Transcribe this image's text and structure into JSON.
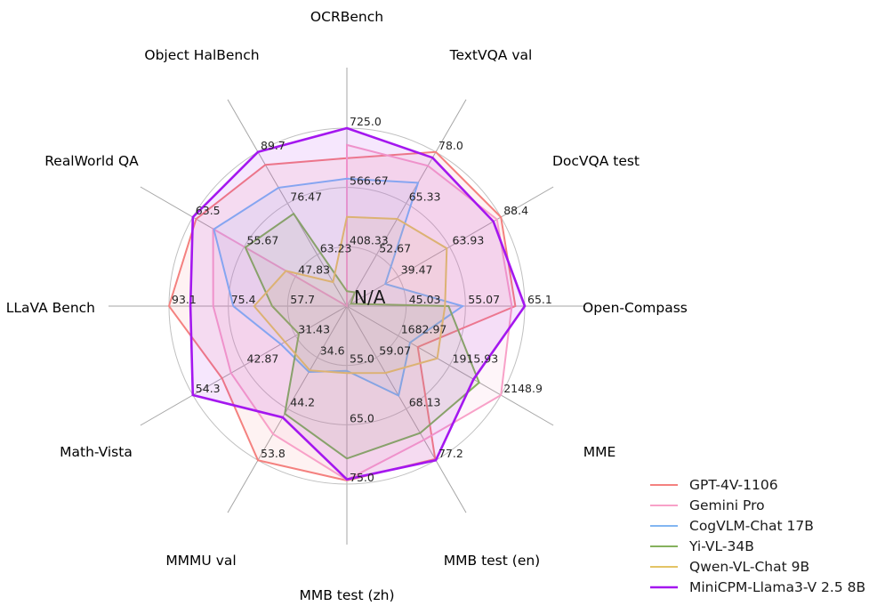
{
  "figure": {
    "background": "#ffffff",
    "grid_color": "#c0c0c0",
    "spoke_color": "#a6a6a6",
    "tick_color": "#262626"
  },
  "chart_data": {
    "type": "radar",
    "title": "",
    "rings": 3,
    "fill_opacity": 0.1,
    "legend_position": "lower right",
    "center_label": "N/A",
    "axes": [
      {
        "label": "OCRBench",
        "center": 250,
        "max": 725.0,
        "ticks": [
          "408.33",
          "566.67",
          "725.0"
        ]
      },
      {
        "label": "TextVQA val",
        "center": 40,
        "max": 78.0,
        "ticks": [
          "52.67",
          "65.33",
          "78.0"
        ]
      },
      {
        "label": "DocVQA test",
        "center": 15,
        "max": 88.4,
        "ticks": [
          "39.47",
          "63.93",
          "88.4"
        ]
      },
      {
        "label": "Open-Compass",
        "center": 35,
        "max": 65.1,
        "ticks": [
          "45.03",
          "55.07",
          "65.1"
        ]
      },
      {
        "label": "MME",
        "center": 1450,
        "max": 2148.9,
        "ticks": [
          "1682.97",
          "1915.93",
          "2148.9"
        ]
      },
      {
        "label": "MMB test (en)",
        "center": 50,
        "max": 77.2,
        "ticks": [
          "59.07",
          "68.13",
          "77.2"
        ]
      },
      {
        "label": "MMB test (zh)",
        "center": 45,
        "max": 75.0,
        "ticks": [
          "55.0",
          "65.0",
          "75.0"
        ]
      },
      {
        "label": "MMMU val",
        "center": 25,
        "max": 53.8,
        "ticks": [
          "34.6",
          "44.2",
          "53.8"
        ]
      },
      {
        "label": "Math-Vista",
        "center": 20,
        "max": 54.3,
        "ticks": [
          "31.43",
          "42.87",
          "54.3"
        ]
      },
      {
        "label": "LLaVA Bench",
        "center": 40,
        "max": 93.1,
        "ticks": [
          "57.7",
          "75.4",
          "93.1"
        ]
      },
      {
        "label": "RealWorld QA",
        "center": 40,
        "max": 63.5,
        "ticks": [
          "47.83",
          "55.67",
          "63.5"
        ]
      },
      {
        "label": "Object HalBench",
        "center": 50,
        "max": 89.7,
        "ticks": [
          "63.23",
          "76.47",
          "89.7"
        ]
      }
    ],
    "series": [
      {
        "name": "GPT-4V-1106",
        "color": "#f4817f",
        "line_width": 2,
        "values": [
          645,
          78.0,
          88.4,
          63.5,
          1771.5,
          77.0,
          74.4,
          53.8,
          47.8,
          93.1,
          63.0,
          86.4
        ]
      },
      {
        "name": "Gemini Pro",
        "color": "#f8a1c8",
        "line_width": 2,
        "values": [
          680,
          74.6,
          86.5,
          62.9,
          2148.9,
          73.6,
          74.3,
          48.9,
          45.8,
          79.9,
          60.4,
          null
        ]
      },
      {
        "name": "CogVLM-Chat 17B",
        "color": "#82b6f2",
        "line_width": 2,
        "values": [
          590,
          70.4,
          33.3,
          54.6,
          1736.6,
          65.8,
          55.9,
          37.3,
          34.7,
          73.9,
          60.3,
          80.5
        ]
      },
      {
        "name": "Yi-VL-34B",
        "color": "#85b15d",
        "line_width": 2,
        "values": [
          290,
          43.4,
          16.9,
          52.2,
          2050.2,
          72.4,
          70.7,
          45.1,
          30.7,
          62.3,
          55.5,
          73.8
        ]
      },
      {
        "name": "Qwen-VL-Chat 9B",
        "color": "#e3c466",
        "line_width": 2,
        "values": [
          488,
          61.5,
          62.6,
          51.6,
          1860.0,
          61.8,
          56.3,
          37.0,
          33.8,
          67.7,
          49.3,
          56.2
        ]
      },
      {
        "name": "MiniCPM-Llama3-V 2.5 8B",
        "color": "#a417ef",
        "line_width": 2.6,
        "values": [
          725,
          76.6,
          84.8,
          65.1,
          2024.6,
          77.2,
          74.2,
          45.8,
          54.3,
          86.7,
          63.5,
          89.7
        ]
      }
    ]
  }
}
